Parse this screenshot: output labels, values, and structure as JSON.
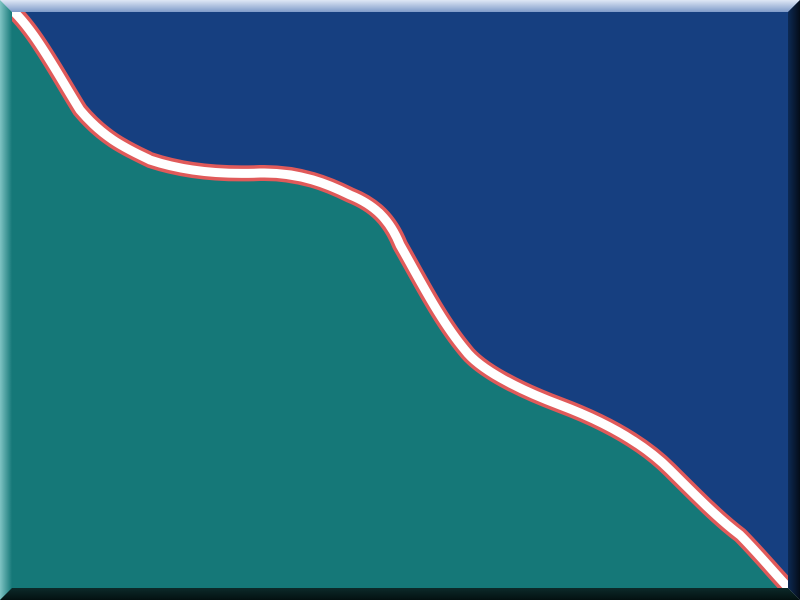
{
  "colors": {
    "upper_region": "#163f80",
    "lower_region": "#157878",
    "divider_core": "#ffffff",
    "divider_edge": "#e05a5a",
    "bevel_light": "#c6d4ec",
    "bevel_dark": "#061416"
  }
}
